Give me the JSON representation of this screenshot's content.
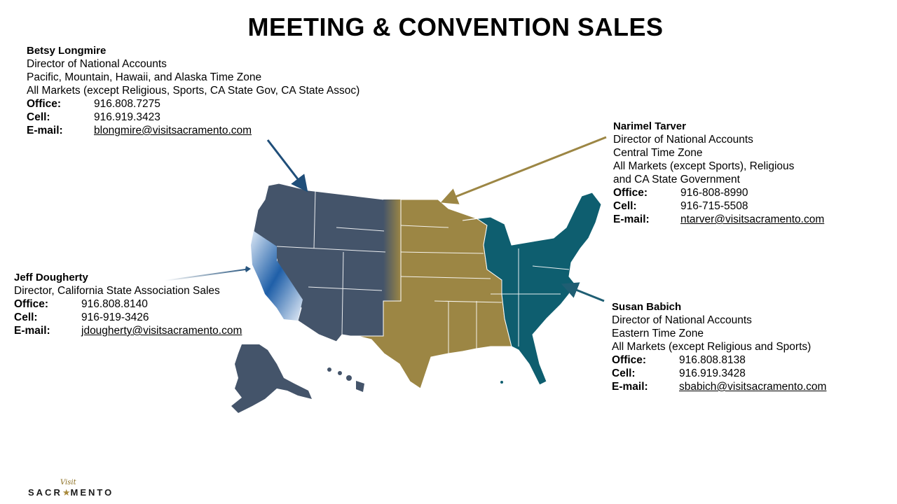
{
  "title": "MEETING & CONVENTION SALES",
  "contacts": {
    "betsy": {
      "name": "Betsy  Longmire",
      "lines": [
        "Director of National Accounts",
        "Pacific, Mountain, Hawaii, and Alaska Time Zone",
        "All Markets (except Religious, Sports, CA State Gov, CA State Assoc)"
      ],
      "office_label": "Office:",
      "office": "916.808.7275",
      "cell_label": "Cell:",
      "cell": "916.919.3423",
      "email_label": "E-mail:",
      "email": "blongmire@visitsacramento.com"
    },
    "narimel": {
      "name": "Narimel Tarver",
      "lines": [
        "Director of National Accounts",
        "Central Time Zone",
        "All Markets (except Sports), Religious",
        "and CA State Government"
      ],
      "office_label": "Office:",
      "office": "916-808-8990",
      "cell_label": "Cell:",
      "cell": "916-715-5508",
      "email_label": "E-mail:",
      "email": "ntarver@visitsacramento.com"
    },
    "jeff": {
      "name": "Jeff Dougherty",
      "lines": [
        "Director, California State Association Sales"
      ],
      "office_label": "Office:",
      "office": "916.808.8140",
      "cell_label": "Cell:",
      "cell": "916-919-3426",
      "email_label": "E-mail:",
      "email": "jdougherty@visitsacramento.com"
    },
    "susan": {
      "name": "Susan Babich",
      "lines": [
        "Director of National Accounts",
        "Eastern Time Zone",
        "All Markets (except Religious and Sports)"
      ],
      "office_label": "Office:",
      "office": "916.808.8138",
      "cell_label": "Cell:",
      "cell": "916.919.3428",
      "email_label": "E-mail:",
      "email": "sbabich@visitsacramento.com"
    }
  },
  "map_colors": {
    "west": "#44546a",
    "central": "#9c8644",
    "east": "#0e5e6f",
    "california": "#1f5fa8",
    "arrow_betsy": "#1f4e79",
    "arrow_narimel": "#9c8644",
    "arrow_jeff": "#1f4e79",
    "arrow_susan": "#1f5e73"
  },
  "logo": {
    "visit": "Visit",
    "word_left": "SACR",
    "star": "★",
    "word_right": "MENTO"
  }
}
